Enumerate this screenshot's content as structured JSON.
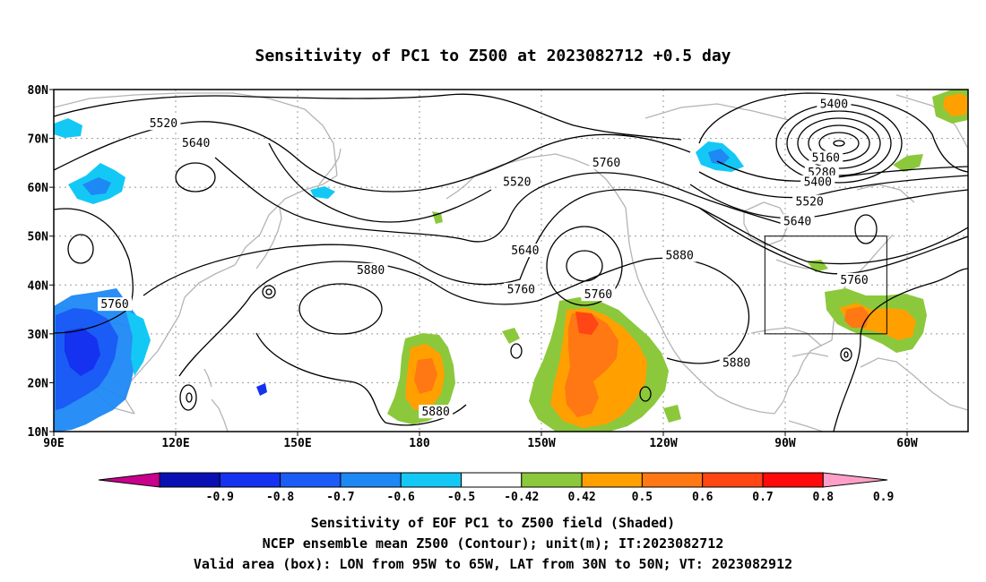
{
  "title": "Sensitivity of PC1 to Z500 at 2023082712 +0.5 day",
  "map": {
    "lat_ticks": [
      "80N",
      "70N",
      "60N",
      "50N",
      "40N",
      "30N",
      "20N",
      "10N"
    ],
    "lon_ticks": [
      "90E",
      "120E",
      "150E",
      "180",
      "150W",
      "120W",
      "90W",
      "60W"
    ],
    "lat_range": [
      10,
      80
    ],
    "lon_range_east": [
      90,
      315
    ],
    "valid_box": {
      "lon": [
        -95,
        -65
      ],
      "lat": [
        30,
        50
      ]
    },
    "contour_labels": [
      {
        "text": "5520",
        "lon": 117,
        "lat": 73
      },
      {
        "text": "5640",
        "lon": 125,
        "lat": 69
      },
      {
        "text": "5520",
        "lon": 204,
        "lat": 61
      },
      {
        "text": "5640",
        "lon": 206,
        "lat": 47
      },
      {
        "text": "5760",
        "lon": 226,
        "lat": 65
      },
      {
        "text": "5880",
        "lon": 168,
        "lat": 43
      },
      {
        "text": "5760",
        "lon": 205,
        "lat": 39
      },
      {
        "text": "5760",
        "lon": 105,
        "lat": 36
      },
      {
        "text": "5760",
        "lon": 224,
        "lat": 38
      },
      {
        "text": "5880",
        "lon": 244,
        "lat": 46
      },
      {
        "text": "5880",
        "lon": 258,
        "lat": 24
      },
      {
        "text": "5880",
        "lon": 184,
        "lat": 14
      },
      {
        "text": "5400",
        "lon": 282,
        "lat": 77
      },
      {
        "text": "5160",
        "lon": 280,
        "lat": 66
      },
      {
        "text": "5280",
        "lon": 279,
        "lat": 63
      },
      {
        "text": "5400",
        "lon": 278,
        "lat": 61
      },
      {
        "text": "5520",
        "lon": 276,
        "lat": 57
      },
      {
        "text": "5640",
        "lon": 273,
        "lat": 53
      },
      {
        "text": "5760",
        "lon": 287,
        "lat": 41
      }
    ]
  },
  "colorbar": {
    "labels": [
      "-0.9",
      "-0.8",
      "-0.7",
      "-0.6",
      "-0.5",
      "-0.42",
      "0.42",
      "0.5",
      "0.6",
      "0.7",
      "0.8",
      "0.9"
    ],
    "colors": [
      "#0a0fb4",
      "#1432f0",
      "#1a5cf5",
      "#1e88f5",
      "#14c8f5",
      "#ffffff",
      "#8cc83c",
      "#ffa000",
      "#ff7814",
      "#ff4614",
      "#ff0a0a"
    ],
    "low_color": "#c8008c",
    "high_color": "#ffa0c8"
  },
  "footer": {
    "line1": "Sensitivity of EOF PC1 to Z500 field (Shaded)",
    "line2": "NCEP ensemble mean Z500 (Contour); unit(m); IT:2023082712",
    "line3": "Valid area (box): LON from 95W to 65W, LAT from 30N to 50N; VT: 2023082912"
  }
}
